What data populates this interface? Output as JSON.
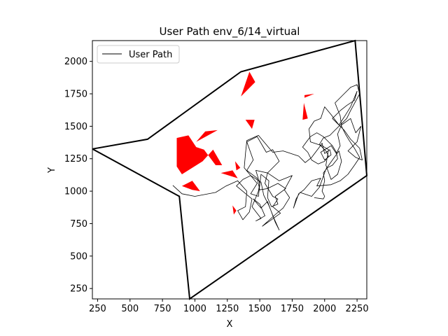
{
  "chart_data": {
    "type": "line",
    "title": "User Path env_6/14_virtual",
    "xlabel": "X",
    "ylabel": "Y",
    "xlim": [
      210,
      2325
    ],
    "ylim": [
      170,
      2160
    ],
    "xticks": [
      250,
      500,
      750,
      1000,
      1250,
      1500,
      1750,
      2000,
      2250
    ],
    "yticks": [
      250,
      500,
      750,
      1000,
      1250,
      1500,
      1750,
      2000
    ],
    "legend": {
      "position": "top-left",
      "entries": [
        "User Path"
      ]
    },
    "colors": {
      "boundary": "#000000",
      "obstacle": "#ff0000",
      "path": "#000000"
    },
    "boundary": [
      [
        210,
        1325
      ],
      [
        635,
        1400
      ],
      [
        1355,
        1920
      ],
      [
        2235,
        2160
      ],
      [
        2325,
        1120
      ],
      [
        960,
        170
      ],
      [
        880,
        960
      ],
      [
        210,
        1325
      ]
    ],
    "obstacles": [
      [
        [
          1355,
          1730
        ],
        [
          1420,
          1920
        ],
        [
          1465,
          1840
        ]
      ],
      [
        [
          1845,
          1740
        ],
        [
          1920,
          1750
        ],
        [
          1845,
          1720
        ]
      ],
      [
        [
          1840,
          1680
        ],
        [
          1870,
          1560
        ],
        [
          1830,
          1550
        ]
      ],
      [
        [
          1390,
          1550
        ],
        [
          1460,
          1550
        ],
        [
          1440,
          1480
        ]
      ],
      [
        [
          1175,
          1470
        ],
        [
          1010,
          1380
        ],
        [
          1080,
          1460
        ]
      ],
      [
        [
          860,
          1410
        ],
        [
          950,
          1430
        ],
        [
          1010,
          1340
        ],
        [
          1070,
          1320
        ],
        [
          1160,
          1200
        ],
        [
          1210,
          1200
        ],
        [
          1140,
          1320
        ],
        [
          1060,
          1230
        ],
        [
          900,
          1130
        ],
        [
          860,
          1190
        ]
      ],
      [
        [
          1310,
          1230
        ],
        [
          1320,
          1160
        ],
        [
          1350,
          1180
        ]
      ],
      [
        [
          1200,
          1140
        ],
        [
          1330,
          1100
        ],
        [
          1290,
          1160
        ]
      ],
      [
        [
          900,
          1040
        ],
        [
          980,
          1010
        ],
        [
          1040,
          1000
        ],
        [
          980,
          1080
        ]
      ],
      [
        [
          1290,
          890
        ],
        [
          1320,
          850
        ],
        [
          1300,
          820
        ]
      ]
    ],
    "series": [
      {
        "name": "User Path",
        "points": [
          [
            830,
            1045
          ],
          [
            900,
            980
          ],
          [
            1000,
            960
          ],
          [
            1160,
            990
          ],
          [
            1240,
            1040
          ],
          [
            1330,
            1080
          ],
          [
            1400,
            1000
          ],
          [
            1390,
            880
          ],
          [
            1330,
            850
          ],
          [
            1370,
            780
          ],
          [
            1420,
            840
          ],
          [
            1440,
            940
          ],
          [
            1320,
            1040
          ],
          [
            1370,
            1090
          ],
          [
            1430,
            1120
          ],
          [
            1480,
            1060
          ],
          [
            1430,
            980
          ],
          [
            1490,
            960
          ],
          [
            1510,
            1130
          ],
          [
            1570,
            1080
          ],
          [
            1560,
            950
          ],
          [
            1590,
            880
          ],
          [
            1640,
            900
          ],
          [
            1620,
            960
          ],
          [
            1700,
            1020
          ],
          [
            1640,
            1060
          ],
          [
            1560,
            1020
          ],
          [
            1500,
            1010
          ],
          [
            1480,
            1100
          ],
          [
            1400,
            1160
          ],
          [
            1450,
            1240
          ],
          [
            1400,
            1380
          ],
          [
            1480,
            1420
          ],
          [
            1550,
            1300
          ],
          [
            1600,
            1320
          ],
          [
            1650,
            1230
          ],
          [
            1560,
            1140
          ],
          [
            1540,
            1060
          ],
          [
            1600,
            960
          ],
          [
            1640,
            940
          ],
          [
            1600,
            880
          ],
          [
            1660,
            830
          ],
          [
            1590,
            780
          ],
          [
            1520,
            730
          ],
          [
            1620,
            820
          ],
          [
            1680,
            870
          ],
          [
            1730,
            950
          ],
          [
            1690,
            1010
          ],
          [
            1750,
            1120
          ],
          [
            1650,
            1080
          ],
          [
            1560,
            1140
          ],
          [
            1470,
            1160
          ],
          [
            1500,
            1060
          ],
          [
            1490,
            1000
          ],
          [
            1440,
            880
          ],
          [
            1510,
            790
          ],
          [
            1470,
            770
          ],
          [
            1540,
            810
          ],
          [
            1500,
            900
          ],
          [
            1450,
            940
          ],
          [
            1510,
            870
          ],
          [
            1560,
            920
          ],
          [
            1620,
            760
          ],
          [
            1650,
            700
          ],
          [
            1610,
            790
          ],
          [
            1570,
            890
          ],
          [
            1530,
            970
          ],
          [
            1510,
            1070
          ],
          [
            1430,
            1120
          ],
          [
            1380,
            1180
          ],
          [
            1390,
            1290
          ],
          [
            1400,
            1390
          ],
          [
            1490,
            1430
          ],
          [
            1600,
            1300
          ],
          [
            1680,
            1310
          ],
          [
            1800,
            1270
          ],
          [
            1850,
            1220
          ],
          [
            1900,
            1260
          ],
          [
            1960,
            1340
          ],
          [
            1980,
            1370
          ],
          [
            2000,
            1290
          ],
          [
            2040,
            1320
          ],
          [
            2050,
            1280
          ],
          [
            2000,
            1240
          ],
          [
            1970,
            1300
          ],
          [
            2050,
            1350
          ],
          [
            2090,
            1290
          ],
          [
            2120,
            1350
          ],
          [
            2100,
            1440
          ],
          [
            2130,
            1510
          ],
          [
            2200,
            1560
          ],
          [
            2240,
            1450
          ],
          [
            2280,
            1500
          ],
          [
            2250,
            1380
          ],
          [
            2180,
            1310
          ],
          [
            2240,
            1260
          ],
          [
            2290,
            1240
          ],
          [
            2270,
            1330
          ],
          [
            2200,
            1400
          ],
          [
            2150,
            1470
          ],
          [
            2100,
            1520
          ],
          [
            2060,
            1560
          ],
          [
            2120,
            1620
          ],
          [
            2170,
            1660
          ],
          [
            2230,
            1700
          ],
          [
            2250,
            1770
          ],
          [
            2200,
            1650
          ],
          [
            2150,
            1570
          ],
          [
            2110,
            1510
          ],
          [
            2050,
            1590
          ],
          [
            2000,
            1650
          ],
          [
            1970,
            1560
          ],
          [
            1920,
            1540
          ],
          [
            1880,
            1480
          ],
          [
            1890,
            1380
          ],
          [
            1980,
            1350
          ],
          [
            2030,
            1320
          ],
          [
            2010,
            1200
          ],
          [
            2050,
            1090
          ],
          [
            2100,
            1130
          ],
          [
            2130,
            1230
          ],
          [
            2110,
            1310
          ],
          [
            2060,
            1240
          ],
          [
            2010,
            1170
          ],
          [
            1960,
            1030
          ],
          [
            1900,
            960
          ],
          [
            1810,
            990
          ],
          [
            1780,
            940
          ],
          [
            1760,
            870
          ],
          [
            1800,
            980
          ],
          [
            1840,
            1010
          ],
          [
            1900,
            1080
          ],
          [
            1970,
            1100
          ],
          [
            1940,
            1040
          ],
          [
            2050,
            1050
          ],
          [
            2120,
            1080
          ],
          [
            2180,
            1130
          ],
          [
            2230,
            1200
          ],
          [
            2270,
            1260
          ],
          [
            2230,
            1330
          ],
          [
            2190,
            1390
          ],
          [
            2160,
            1440
          ],
          [
            2130,
            1500
          ],
          [
            2120,
            1580
          ],
          [
            2080,
            1680
          ],
          [
            2140,
            1740
          ],
          [
            2200,
            1800
          ],
          [
            2250,
            1820
          ],
          [
            2270,
            1750
          ],
          [
            2200,
            1620
          ],
          [
            2170,
            1560
          ],
          [
            2130,
            1520
          ],
          [
            2080,
            1470
          ],
          [
            2040,
            1430
          ],
          [
            1990,
            1410
          ],
          [
            1960,
            1360
          ],
          [
            2010,
            1310
          ],
          [
            2030,
            1270
          ],
          [
            2000,
            1230
          ],
          [
            1950,
            1210
          ],
          [
            1900,
            1240
          ],
          [
            1870,
            1300
          ],
          [
            1830,
            1340
          ],
          [
            1860,
            1380
          ],
          [
            1890,
            1420
          ],
          [
            1940,
            1450
          ],
          [
            1990,
            1420
          ],
          [
            2030,
            1380
          ],
          [
            2060,
            1350
          ],
          [
            2090,
            1300
          ],
          [
            2100,
            1250
          ],
          [
            2060,
            1200
          ],
          [
            2020,
            1180
          ],
          [
            1990,
            1140
          ],
          [
            2000,
            1080
          ],
          [
            1980,
            1000
          ],
          [
            2000,
            960
          ],
          [
            1990,
            940
          ],
          [
            1920,
            950
          ]
        ]
      }
    ]
  }
}
